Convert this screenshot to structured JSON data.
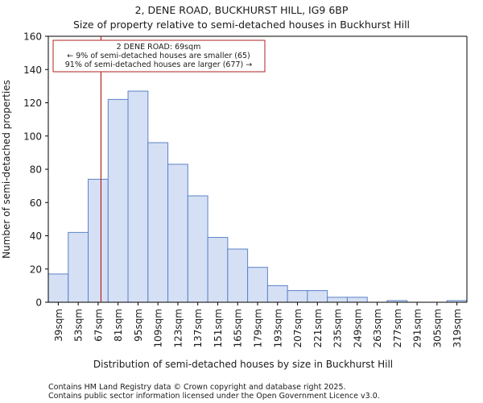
{
  "chart_data": {
    "type": "bar",
    "title": "2, DENE ROAD, BUCKHURST HILL, IG9 6BP",
    "subtitle": "Size of property relative to semi-detached houses in Buckhurst Hill",
    "xlabel": "Distribution of semi-detached houses by size in Buckhurst Hill",
    "ylabel": "Number of semi-detached properties",
    "ylim": [
      0,
      160
    ],
    "yticks": [
      0,
      20,
      40,
      60,
      80,
      100,
      120,
      140,
      160
    ],
    "grid": false,
    "bin_edges": [
      32,
      46,
      60,
      74,
      88,
      102,
      116,
      130,
      144,
      158,
      172,
      186,
      200,
      214,
      228,
      242,
      256,
      270,
      284,
      298,
      312,
      326
    ],
    "categories": [
      "39sqm",
      "53sqm",
      "67sqm",
      "81sqm",
      "95sqm",
      "109sqm",
      "123sqm",
      "137sqm",
      "151sqm",
      "165sqm",
      "179sqm",
      "193sqm",
      "207sqm",
      "221sqm",
      "235sqm",
      "249sqm",
      "263sqm",
      "277sqm",
      "291sqm",
      "305sqm",
      "319sqm"
    ],
    "values": [
      17,
      42,
      74,
      122,
      127,
      96,
      83,
      64,
      39,
      32,
      21,
      10,
      7,
      7,
      3,
      3,
      0,
      1,
      0,
      0,
      1
    ],
    "bar_color": "#d6e0f5",
    "bar_edge_color": "#5b83c7",
    "marker": {
      "value": 69,
      "color": "#b22222",
      "annotation": {
        "line1": "2 DENE ROAD: 69sqm",
        "line2": "← 9% of semi-detached houses are smaller (65)",
        "line3": "91% of semi-detached houses are larger (677) →"
      }
    }
  },
  "footer": {
    "line1": "Contains HM Land Registry data © Crown copyright and database right 2025.",
    "line2": "Contains public sector information licensed under the Open Government Licence v3.0."
  }
}
